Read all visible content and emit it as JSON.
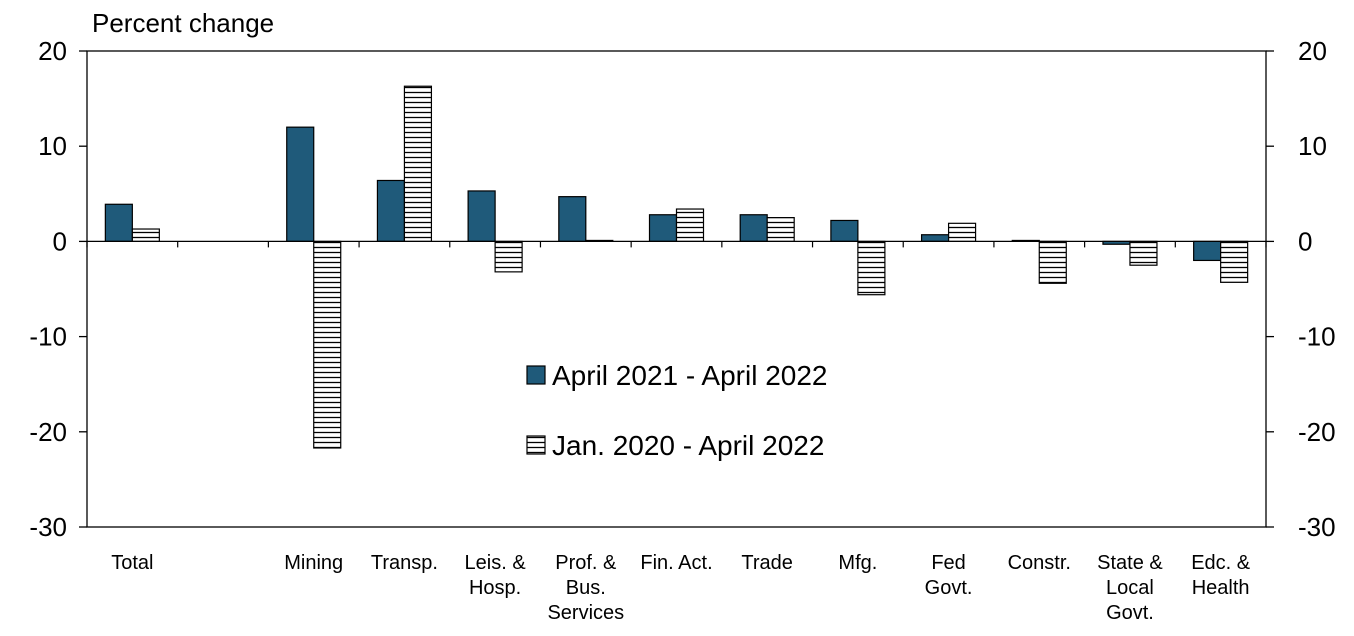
{
  "chart_data": {
    "type": "bar",
    "title": "Percent change",
    "categories": [
      "Total",
      null,
      "Mining",
      "Transp.",
      "Leis. &\nHosp.",
      "Prof. &\nBus.\nServices",
      "Fin. Act.",
      "Trade",
      "Mfg.",
      "Fed\nGovt.",
      "Constr.",
      "State &\nLocal\nGovt.",
      "Edc. &\nHealth"
    ],
    "series": [
      {
        "name": "April 2021 - April 2022",
        "color": "#1f5a7a",
        "values": [
          3.9,
          null,
          12.0,
          6.4,
          5.3,
          4.7,
          2.8,
          2.8,
          2.2,
          0.7,
          0.1,
          -0.3,
          -2.0
        ]
      },
      {
        "name": "Jan. 2020 - April 2022",
        "color": "#ffffff",
        "hatch": "horizontal",
        "values": [
          1.3,
          null,
          -21.7,
          16.3,
          -3.2,
          0.1,
          3.4,
          2.5,
          -5.6,
          1.9,
          -4.4,
          -2.5,
          -4.3
        ]
      }
    ],
    "ylim": [
      -30,
      20
    ],
    "yticks": [
      -30,
      -20,
      -10,
      0,
      10,
      20
    ],
    "y2lim": [
      -30,
      20
    ],
    "y2ticks": [
      -30,
      -20,
      -10,
      0,
      10,
      20
    ],
    "grid": false
  }
}
